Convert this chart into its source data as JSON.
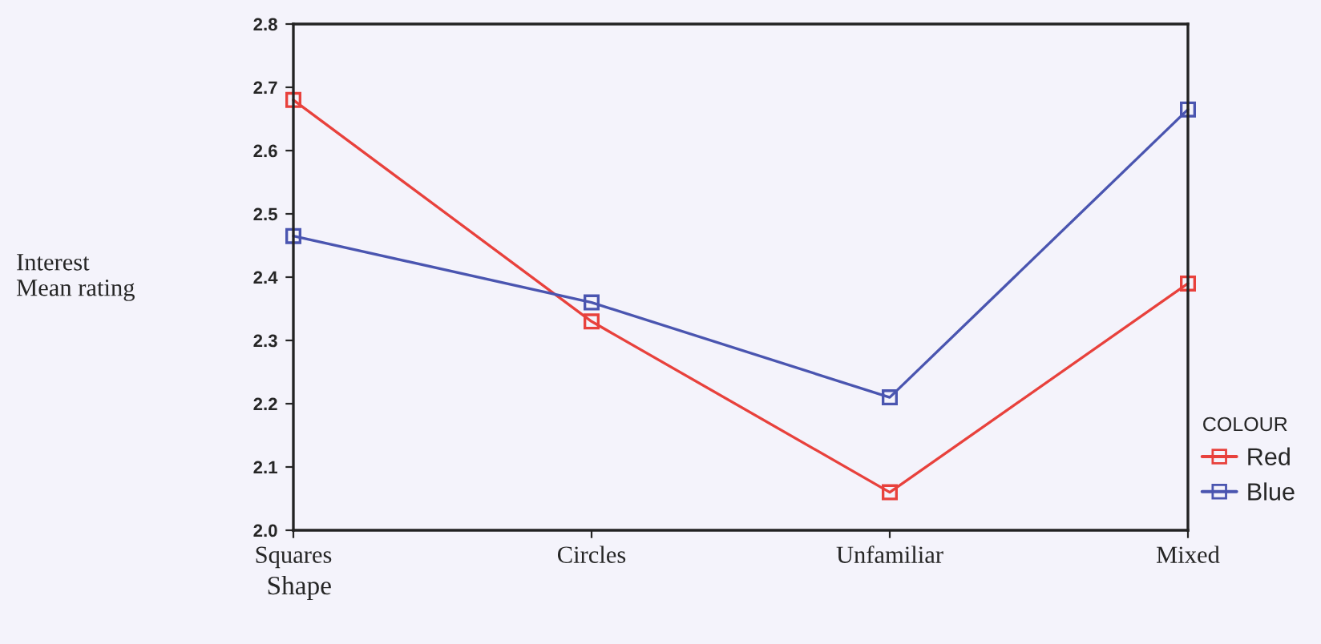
{
  "chart_data": {
    "type": "line",
    "xlabel": "Shape",
    "ylabel": "Interest\nMean rating",
    "legend_title": "COLOUR",
    "categories": [
      "Squares",
      "Circles",
      "Unfamiliar",
      "Mixed"
    ],
    "series": [
      {
        "name": "Red",
        "color": "#e8413c",
        "values": [
          2.68,
          2.33,
          2.06,
          2.39
        ]
      },
      {
        "name": "Blue",
        "color": "#4a55b0",
        "values": [
          2.465,
          2.36,
          2.21,
          2.665
        ]
      }
    ],
    "ylim": [
      2.0,
      2.8
    ],
    "yticks": [
      {
        "value": 2.0,
        "label": "2.0"
      },
      2.1,
      2.2,
      2.3,
      2.4,
      2.5,
      2.6,
      2.7,
      2.8
    ],
    "marker": "square",
    "line_style": "solid",
    "grid": false,
    "legend": "bottom right"
  }
}
